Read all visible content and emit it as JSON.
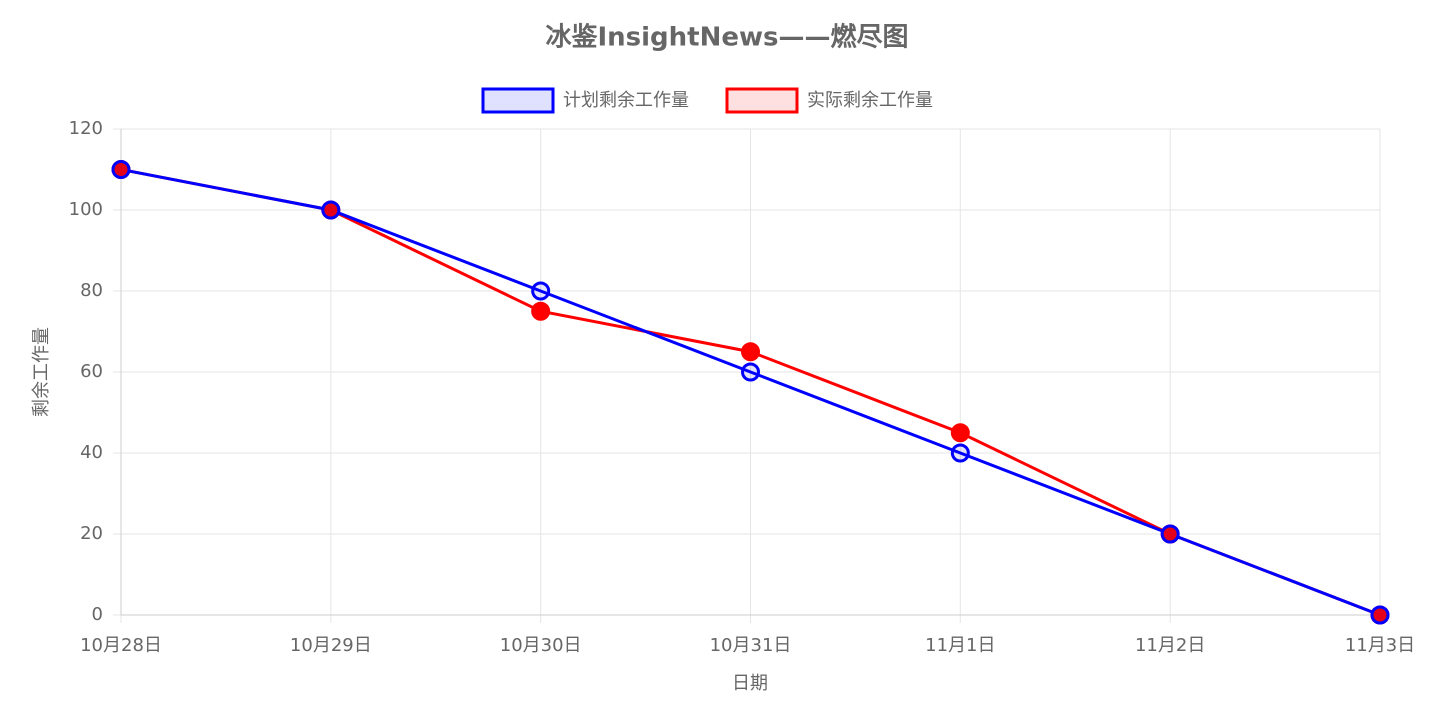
{
  "chart_data": {
    "type": "line",
    "title": "冰鉴InsightNews——燃尽图",
    "x_label": "日期",
    "y_label": "剩余工作量",
    "categories": [
      "10月28日",
      "10月29日",
      "10月30日",
      "10月31日",
      "11月1日",
      "11月2日",
      "11月3日"
    ],
    "series": [
      {
        "name": "计划剩余工作量",
        "color": "#0000ff",
        "values": [
          110,
          100,
          80,
          60,
          40,
          20,
          0
        ]
      },
      {
        "name": "实际剩余工作量",
        "color": "#ff0000",
        "values": [
          110,
          100,
          75,
          65,
          45,
          20,
          0
        ]
      }
    ],
    "ylim": [
      0,
      120
    ],
    "yticks": [
      0,
      20,
      40,
      60,
      80,
      100,
      120
    ],
    "grid": true,
    "legend": "top"
  }
}
